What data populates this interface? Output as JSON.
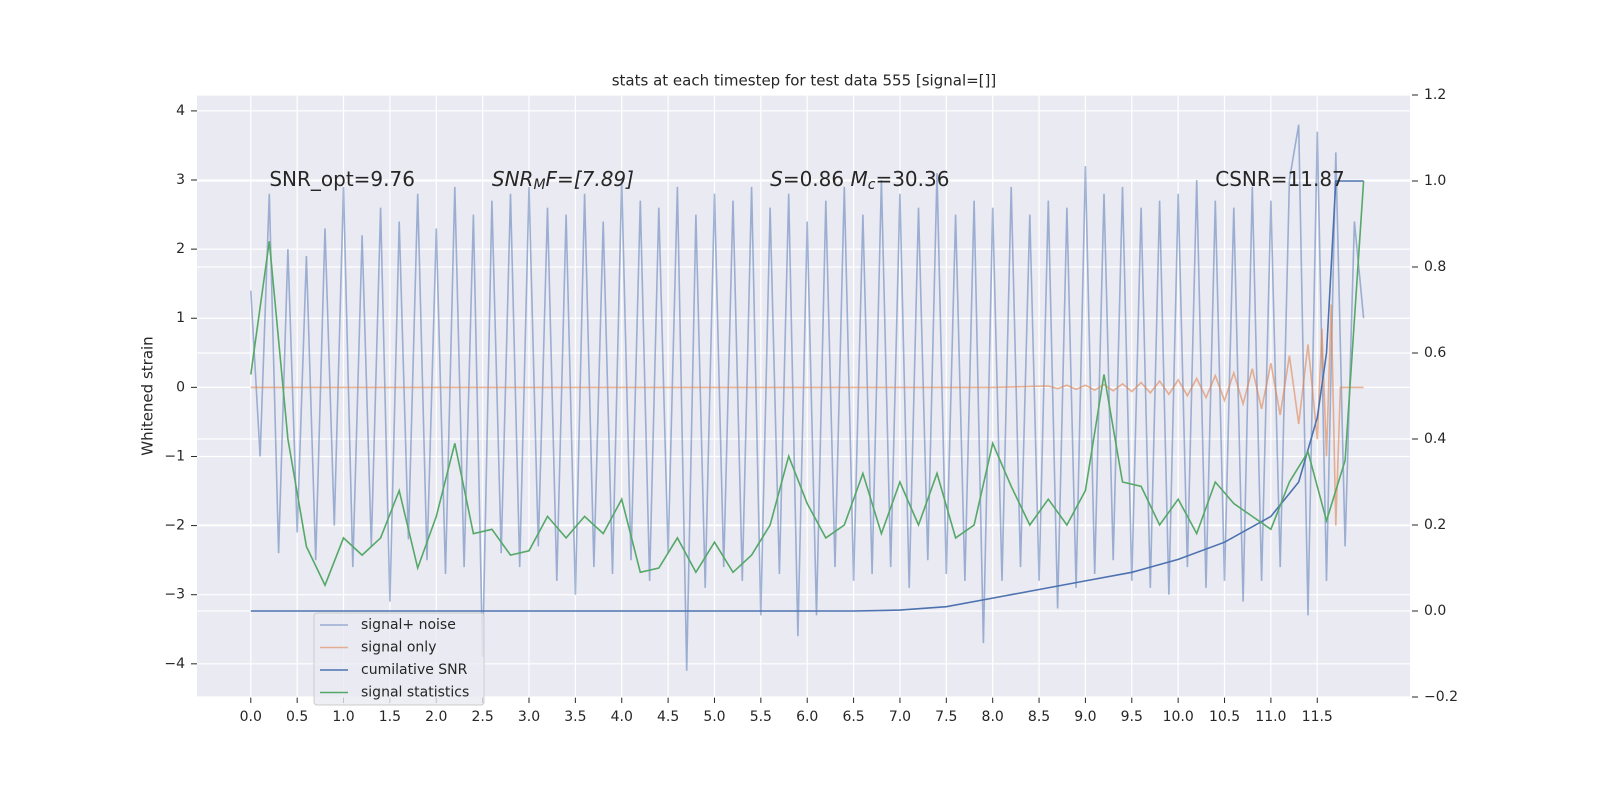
{
  "chart_data": {
    "type": "line",
    "title": "stats at each timestep for test data 555 [signal=[]]",
    "ylabel": "Whitened strain",
    "xlim": [
      -0.58,
      12.5
    ],
    "ylim": [
      -4.48,
      4.23
    ],
    "y2lim": [
      -0.2,
      1.2
    ],
    "xticks": [
      {
        "value": 0,
        "label": "0.0"
      },
      {
        "value": 0.5,
        "label": "0.5"
      },
      {
        "value": 1,
        "label": "1.0"
      },
      {
        "value": 1.5,
        "label": "1.5"
      },
      {
        "value": 2,
        "label": "2.0"
      },
      {
        "value": 2.5,
        "label": "2.5"
      },
      {
        "value": 3,
        "label": "3.0"
      },
      {
        "value": 3.5,
        "label": "3.5"
      },
      {
        "value": 4,
        "label": "4.0"
      },
      {
        "value": 4.5,
        "label": "4.5"
      },
      {
        "value": 5,
        "label": "5.0"
      },
      {
        "value": 5.5,
        "label": "5.5"
      },
      {
        "value": 6,
        "label": "6.0"
      },
      {
        "value": 6.5,
        "label": "6.5"
      },
      {
        "value": 7,
        "label": "7.0"
      },
      {
        "value": 7.5,
        "label": "7.5"
      },
      {
        "value": 8,
        "label": "8.0"
      },
      {
        "value": 8.5,
        "label": "8.5"
      },
      {
        "value": 9,
        "label": "9.0"
      },
      {
        "value": 9.5,
        "label": "9.5"
      },
      {
        "value": 10,
        "label": "10.0"
      },
      {
        "value": 10.5,
        "label": "10.5"
      },
      {
        "value": 11,
        "label": "11.0"
      },
      {
        "value": 11.5,
        "label": "11.5"
      }
    ],
    "yticks": [
      {
        "value": -4,
        "label": "−4"
      },
      {
        "value": -3,
        "label": "−3"
      },
      {
        "value": -2,
        "label": "−2"
      },
      {
        "value": -1,
        "label": "−1"
      },
      0,
      1,
      2,
      3,
      4
    ],
    "y2ticks": [
      {
        "value": -0.2,
        "label": "−0.2"
      },
      {
        "value": 0,
        "label": "0.0"
      },
      {
        "value": 0.2,
        "label": "0.2"
      },
      {
        "value": 0.4,
        "label": "0.4"
      },
      {
        "value": 0.6,
        "label": "0.6"
      },
      {
        "value": 0.8,
        "label": "0.8"
      },
      {
        "value": 1.0,
        "label": "1.0"
      },
      {
        "value": 1.2,
        "label": "1.2"
      }
    ],
    "grid": true,
    "legend": "lower left",
    "annotations": [
      [
        "SNR_opt=9.76"
      ],
      [
        "SNR",
        "M",
        "F=[7.89]"
      ],
      [
        "S",
        "=0.86   ",
        "M",
        "c",
        "=30.36"
      ],
      [
        "CSNR=11.87"
      ]
    ],
    "series": [
      {
        "name": "signal+ noise",
        "color": "#4c72b0",
        "opacity": 0.5,
        "x": [
          0,
          0.1,
          0.2,
          0.3,
          0.4,
          0.5,
          0.6,
          0.7,
          0.8,
          0.9,
          1,
          1.1,
          1.2,
          1.3,
          1.4,
          1.5,
          1.6,
          1.7,
          1.8,
          1.9,
          2,
          2.1,
          2.2,
          2.3,
          2.4,
          2.5,
          2.6,
          2.7,
          2.8,
          2.9,
          3,
          3.1,
          3.2,
          3.3,
          3.4,
          3.5,
          3.6,
          3.7,
          3.8,
          3.9,
          4,
          4.1,
          4.2,
          4.3,
          4.4,
          4.5,
          4.6,
          4.7,
          4.8,
          4.9,
          5,
          5.1,
          5.2,
          5.3,
          5.4,
          5.5,
          5.6,
          5.7,
          5.8,
          5.9,
          6,
          6.1,
          6.2,
          6.3,
          6.4,
          6.5,
          6.6,
          6.7,
          6.8,
          6.9,
          7,
          7.1,
          7.2,
          7.3,
          7.4,
          7.5,
          7.6,
          7.7,
          7.8,
          7.9,
          8,
          8.1,
          8.2,
          8.3,
          8.4,
          8.5,
          8.6,
          8.7,
          8.8,
          8.9,
          9,
          9.1,
          9.2,
          9.3,
          9.4,
          9.5,
          9.6,
          9.7,
          9.8,
          9.9,
          10,
          10.1,
          10.2,
          10.3,
          10.4,
          10.5,
          10.6,
          10.7,
          10.8,
          10.9,
          11,
          11.1,
          11.2,
          11.3,
          11.4,
          11.5,
          11.6,
          11.7,
          11.8,
          11.9,
          12
        ],
        "values": [
          1.4,
          -1.0,
          2.8,
          -2.4,
          2.0,
          -2.1,
          1.9,
          -2.5,
          2.3,
          -2.0,
          2.9,
          -2.6,
          2.2,
          -2.3,
          2.6,
          -3.1,
          2.4,
          -2.2,
          2.8,
          -2.5,
          2.3,
          -2.7,
          2.9,
          -2.6,
          2.5,
          -3.9,
          2.7,
          -2.4,
          2.8,
          -2.6,
          2.9,
          -2.3,
          2.6,
          -2.8,
          2.5,
          -3.0,
          2.8,
          -2.6,
          2.4,
          -2.7,
          3.0,
          -2.5,
          2.7,
          -2.8,
          2.6,
          -2.4,
          2.9,
          -4.1,
          2.5,
          -2.9,
          2.8,
          -2.6,
          2.7,
          -2.8,
          2.9,
          -3.3,
          2.6,
          -2.7,
          2.8,
          -3.6,
          2.4,
          -3.3,
          2.7,
          -2.6,
          2.9,
          -2.8,
          2.5,
          -2.7,
          3.0,
          -2.6,
          2.8,
          -2.9,
          2.6,
          -2.5,
          3.1,
          -2.7,
          2.5,
          -2.8,
          2.7,
          -3.7,
          2.6,
          -2.8,
          2.9,
          -2.6,
          2.5,
          -2.8,
          2.7,
          -3.2,
          2.6,
          -2.9,
          3.2,
          -2.7,
          2.8,
          -2.5,
          2.9,
          -2.8,
          2.6,
          -2.9,
          2.7,
          -3.0,
          2.8,
          -2.6,
          3.0,
          -2.9,
          2.7,
          -2.8,
          2.6,
          -3.1,
          2.9,
          -2.8,
          2.7,
          -2.6,
          3.0,
          3.8,
          -3.3,
          3.7,
          -2.8,
          3.4,
          -2.3,
          2.4,
          1.0
        ]
      },
      {
        "name": "signal only",
        "color": "#dd8452",
        "opacity": 0.6,
        "x": [
          0,
          8.0,
          8.6,
          8.7,
          8.8,
          8.9,
          9.0,
          9.1,
          9.2,
          9.3,
          9.4,
          9.5,
          9.6,
          9.7,
          9.8,
          9.9,
          10.0,
          10.1,
          10.2,
          10.3,
          10.4,
          10.5,
          10.6,
          10.7,
          10.8,
          10.9,
          11.0,
          11.1,
          11.2,
          11.3,
          11.4,
          11.5,
          11.55,
          11.6,
          11.65,
          11.7,
          11.75,
          12
        ],
        "values": [
          0,
          0,
          0.02,
          -0.02,
          0.03,
          -0.03,
          0.03,
          -0.04,
          0.04,
          -0.05,
          0.05,
          -0.06,
          0.07,
          -0.08,
          0.09,
          -0.1,
          0.11,
          -0.12,
          0.13,
          -0.15,
          0.17,
          -0.19,
          0.21,
          -0.24,
          0.27,
          -0.31,
          0.35,
          -0.4,
          0.46,
          -0.53,
          0.62,
          -0.75,
          0.85,
          -1.0,
          1.2,
          -2.0,
          0,
          0
        ]
      },
      {
        "name": "cumilative SNR",
        "color": "#4c72b0",
        "axis": "y2",
        "x": [
          0,
          6.5,
          7.0,
          7.5,
          8.0,
          8.5,
          9.0,
          9.5,
          10.0,
          10.5,
          11.0,
          11.3,
          11.5,
          11.6,
          11.65,
          11.7,
          12.0
        ],
        "values": [
          0,
          0,
          0.002,
          0.01,
          0.03,
          0.05,
          0.07,
          0.09,
          0.12,
          0.16,
          0.22,
          0.3,
          0.45,
          0.6,
          0.8,
          1.0,
          1.0
        ]
      },
      {
        "name": "signal statistics",
        "color": "#55a868",
        "axis": "y2",
        "x": [
          0,
          0.2,
          0.4,
          0.6,
          0.8,
          1.0,
          1.2,
          1.4,
          1.6,
          1.8,
          2.0,
          2.2,
          2.4,
          2.6,
          2.8,
          3.0,
          3.2,
          3.4,
          3.6,
          3.8,
          4.0,
          4.2,
          4.4,
          4.6,
          4.8,
          5.0,
          5.2,
          5.4,
          5.6,
          5.8,
          6.0,
          6.2,
          6.4,
          6.6,
          6.8,
          7.0,
          7.2,
          7.4,
          7.6,
          7.8,
          8.0,
          8.2,
          8.4,
          8.6,
          8.8,
          9.0,
          9.2,
          9.4,
          9.6,
          9.8,
          10.0,
          10.2,
          10.4,
          10.6,
          10.8,
          11.0,
          11.2,
          11.4,
          11.6,
          11.8,
          12.0
        ],
        "values": [
          0.55,
          0.86,
          0.4,
          0.15,
          0.06,
          0.17,
          0.13,
          0.17,
          0.28,
          0.1,
          0.22,
          0.39,
          0.18,
          0.19,
          0.13,
          0.14,
          0.22,
          0.17,
          0.22,
          0.18,
          0.26,
          0.09,
          0.1,
          0.17,
          0.09,
          0.16,
          0.09,
          0.13,
          0.2,
          0.36,
          0.25,
          0.17,
          0.2,
          0.32,
          0.18,
          0.3,
          0.2,
          0.32,
          0.17,
          0.2,
          0.39,
          0.29,
          0.2,
          0.26,
          0.2,
          0.28,
          0.55,
          0.3,
          0.29,
          0.2,
          0.26,
          0.18,
          0.3,
          0.25,
          0.22,
          0.19,
          0.3,
          0.37,
          0.21,
          0.35,
          1.0
        ]
      }
    ]
  }
}
